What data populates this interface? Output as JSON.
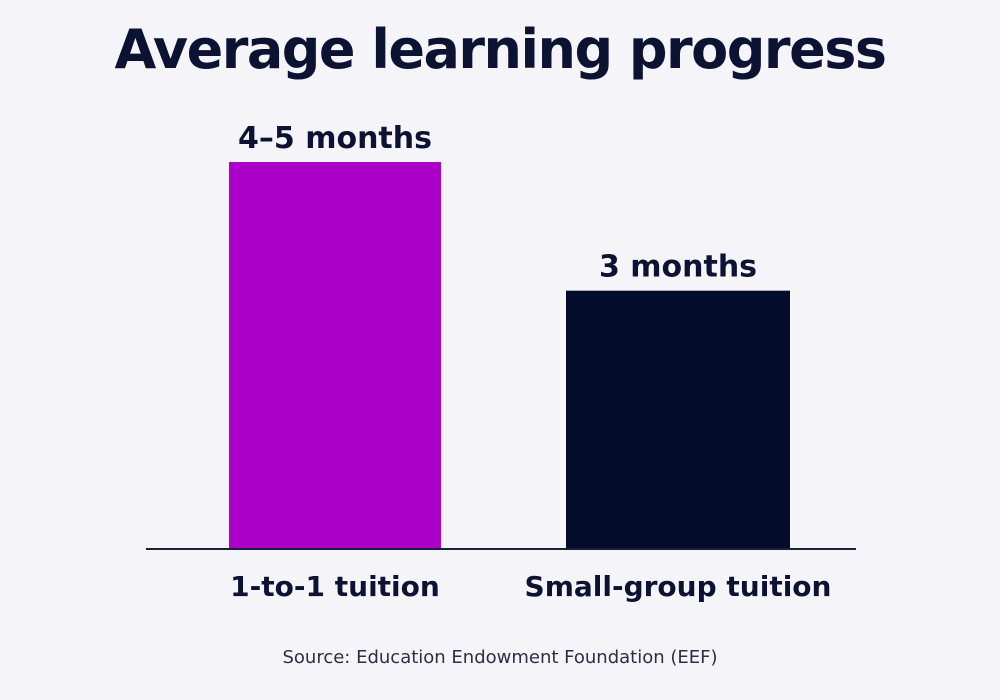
{
  "chart_data": {
    "type": "bar",
    "title": "Average learning progress",
    "categories": [
      "1-to-1 tuition",
      "Small-group tuition"
    ],
    "values": [
      4.5,
      3
    ],
    "data_labels": [
      "4–5 months",
      "3 months"
    ],
    "colors": [
      "#aa00c8",
      "#040c2c"
    ],
    "axis_color": "#1a1f3a",
    "ylim": [
      0,
      5
    ],
    "grid": false,
    "legend": "none",
    "xlabel": "",
    "ylabel": ""
  },
  "source": "Source: Education Endowment Foundation (EEF)"
}
